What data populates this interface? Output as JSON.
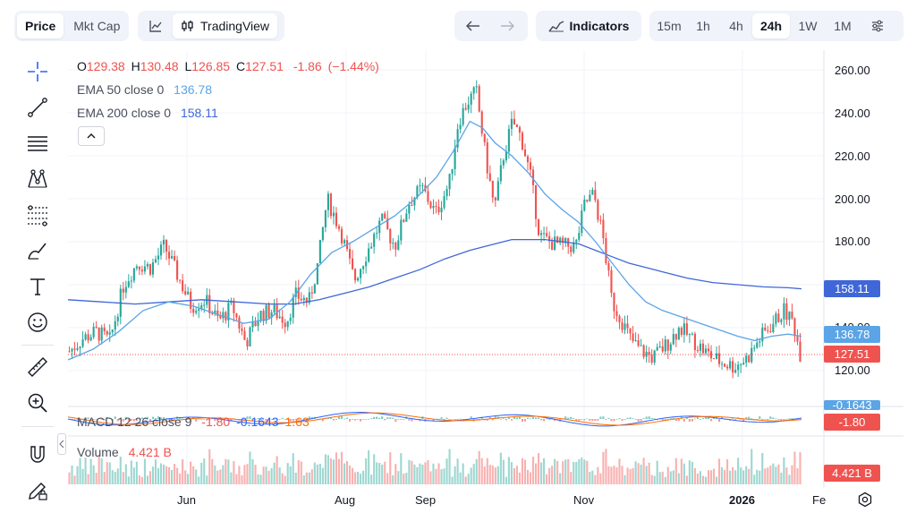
{
  "toolbar": {
    "chart_type_tabs": [
      "Price",
      "Mkt Cap"
    ],
    "active_chart_type": "Price",
    "tradingview_label": "TradingView",
    "indicators_label": "Indicators",
    "intervals": [
      "15m",
      "1h",
      "4h",
      "24h",
      "1W",
      "1M"
    ],
    "active_interval": "24h"
  },
  "legend": {
    "ohlc": {
      "o_label": "O",
      "o_value": "129.38",
      "h_label": "H",
      "h_value": "130.48",
      "l_label": "L",
      "l_value": "126.85",
      "c_label": "C",
      "c_value": "127.51",
      "change": "-1.86",
      "change_pct": "(−1.44%)"
    },
    "ema50": {
      "label": "EMA 50 close 0",
      "value": "136.78"
    },
    "ema200": {
      "label": "EMA 200 close 0",
      "value": "158.11"
    },
    "macd": {
      "label": "MACD 12 26 close 9",
      "values": [
        "-1.80",
        "-0.1643",
        "1.63"
      ]
    },
    "volume": {
      "label": "Volume",
      "value": "4.421 B"
    }
  },
  "price_tags": {
    "ema200": "158.11",
    "ema50": "136.78",
    "last": "127.51",
    "macd_partial": "-0.1643",
    "macd": "-1.80",
    "volume": "4.421 B"
  },
  "colors": {
    "up": "#26a69a",
    "down": "#ef5350",
    "ema50": "#5ba4e6",
    "ema200": "#3f67d8",
    "macd_line": "#2962ff",
    "signal_line": "#ff6d00",
    "text_muted": "#787b86"
  },
  "chart_data": {
    "type": "candlestick",
    "y_axis_ticks": [
      "260.00",
      "240.00",
      "220.00",
      "200.00",
      "180.00",
      "140.00",
      "120.00"
    ],
    "ylim": [
      115,
      265
    ],
    "x_axis_labels": [
      "Jun",
      "Aug",
      "Sep",
      "Nov",
      "2026",
      "Fe"
    ],
    "ema50_path": [
      [
        0,
        125
      ],
      [
        30,
        130
      ],
      [
        60,
        138
      ],
      [
        90,
        148
      ],
      [
        120,
        152
      ],
      [
        150,
        150
      ],
      [
        180,
        146
      ],
      [
        210,
        142
      ],
      [
        240,
        144
      ],
      [
        265,
        152
      ],
      [
        290,
        165
      ],
      [
        315,
        175
      ],
      [
        340,
        180
      ],
      [
        365,
        186
      ],
      [
        390,
        192
      ],
      [
        415,
        200
      ],
      [
        440,
        210
      ],
      [
        460,
        222
      ],
      [
        480,
        236
      ],
      [
        495,
        233
      ],
      [
        510,
        226
      ],
      [
        530,
        220
      ],
      [
        550,
        212
      ],
      [
        570,
        202
      ],
      [
        590,
        195
      ],
      [
        610,
        189
      ],
      [
        630,
        180
      ],
      [
        650,
        170
      ],
      [
        670,
        160
      ],
      [
        690,
        152
      ],
      [
        710,
        148
      ],
      [
        740,
        144
      ],
      [
        770,
        140
      ],
      [
        800,
        136
      ],
      [
        820,
        134
      ],
      [
        840,
        136
      ],
      [
        860,
        137
      ],
      [
        876,
        136
      ]
    ],
    "ema200_path": [
      [
        0,
        153
      ],
      [
        40,
        152
      ],
      [
        80,
        151
      ],
      [
        120,
        152
      ],
      [
        160,
        153
      ],
      [
        200,
        152
      ],
      [
        240,
        151
      ],
      [
        270,
        151
      ],
      [
        300,
        153
      ],
      [
        330,
        156
      ],
      [
        360,
        159
      ],
      [
        390,
        163
      ],
      [
        420,
        167
      ],
      [
        450,
        172
      ],
      [
        480,
        176
      ],
      [
        510,
        179
      ],
      [
        530,
        181
      ],
      [
        550,
        181
      ],
      [
        570,
        181
      ],
      [
        590,
        180
      ],
      [
        610,
        179
      ],
      [
        630,
        176
      ],
      [
        650,
        173
      ],
      [
        670,
        170
      ],
      [
        690,
        168
      ],
      [
        710,
        166
      ],
      [
        740,
        163
      ],
      [
        770,
        161
      ],
      [
        800,
        160
      ],
      [
        830,
        159
      ],
      [
        860,
        158.6
      ],
      [
        876,
        158.1
      ]
    ]
  }
}
